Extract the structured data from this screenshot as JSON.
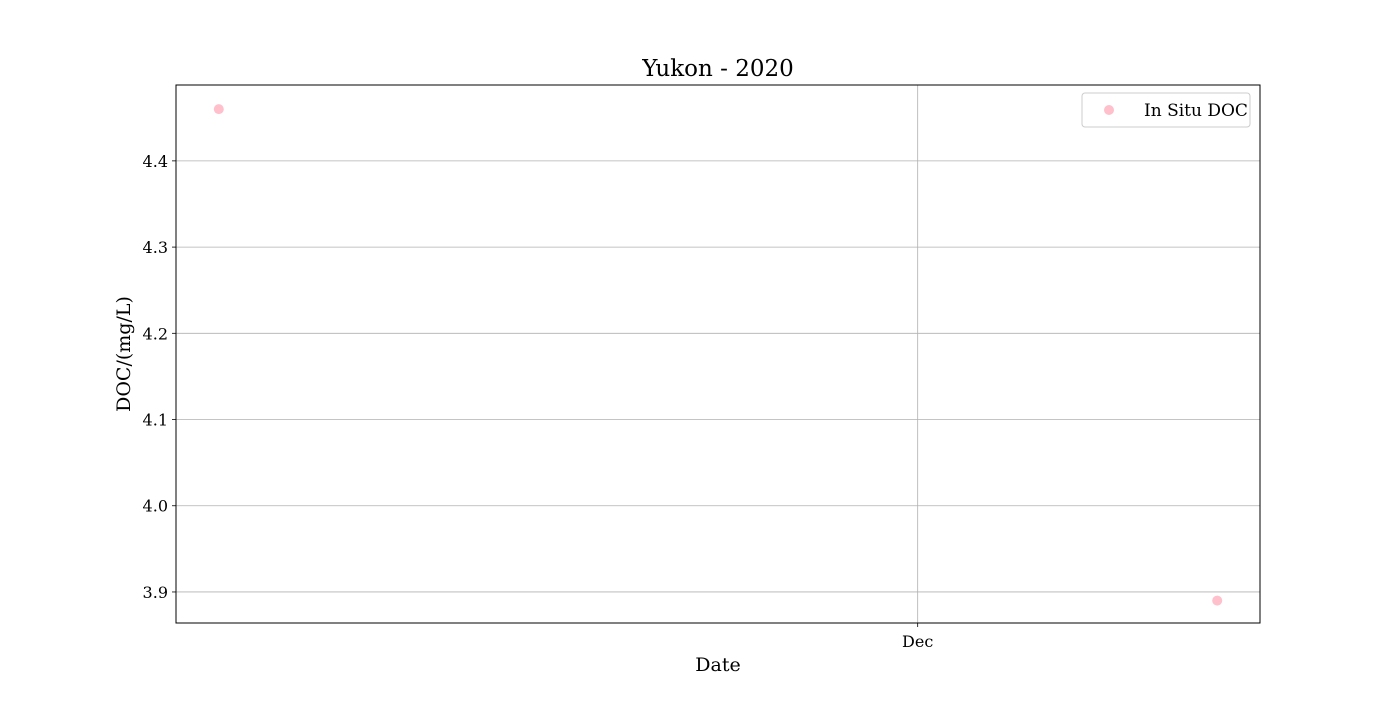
{
  "chart_data": {
    "type": "scatter",
    "title": "Yukon - 2020",
    "xlabel": "Date",
    "ylabel": "DOC/(mg/L)",
    "x_axis_type": "date",
    "xlim": [
      "2020-10-10",
      "2020-12-25"
    ],
    "ylim": [
      3.864,
      4.488
    ],
    "x_ticks": [
      {
        "value": "2020-12-01",
        "label": "Dec"
      }
    ],
    "y_ticks": [
      {
        "value": 3.9,
        "label": "3.9"
      },
      {
        "value": 4.0,
        "label": "4.0"
      },
      {
        "value": 4.1,
        "label": "4.1"
      },
      {
        "value": 4.2,
        "label": "4.2"
      },
      {
        "value": 4.3,
        "label": "4.3"
      },
      {
        "value": 4.4,
        "label": "4.4"
      }
    ],
    "grid": true,
    "legend_position": "top-right",
    "series": [
      {
        "name": "In Situ DOC",
        "color": "#ffc0cb",
        "points": [
          {
            "x": "2020-10-13",
            "y": 4.46
          },
          {
            "x": "2020-12-22",
            "y": 3.89
          }
        ]
      }
    ]
  }
}
